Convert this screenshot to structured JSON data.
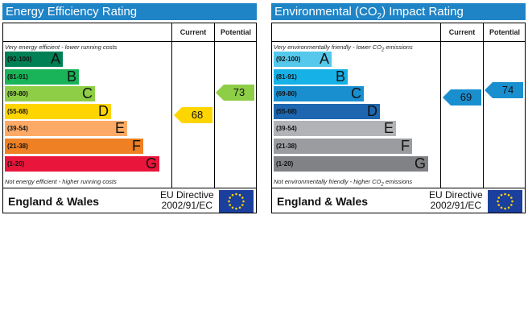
{
  "chart_data": [
    {
      "type": "bar",
      "title": "Energy Efficiency Rating",
      "columns": [
        "Current",
        "Potential"
      ],
      "note_top": "Very energy efficient - lower running costs",
      "note_bottom": "Not energy efficient - higher running costs",
      "bands": [
        {
          "range": "(92-100)",
          "letter": "A",
          "color": "#008054"
        },
        {
          "range": "(81-91)",
          "letter": "B",
          "color": "#19b459"
        },
        {
          "range": "(69-80)",
          "letter": "C",
          "color": "#8dce46"
        },
        {
          "range": "(55-68)",
          "letter": "D",
          "color": "#ffd500"
        },
        {
          "range": "(39-54)",
          "letter": "E",
          "color": "#fcaa65"
        },
        {
          "range": "(21-38)",
          "letter": "F",
          "color": "#ef8023"
        },
        {
          "range": "(1-20)",
          "letter": "G",
          "color": "#e9153b"
        }
      ],
      "current": {
        "value": 68,
        "label": "68",
        "band": "D",
        "color": "#ffd500"
      },
      "potential": {
        "value": 73,
        "label": "73",
        "band": "C",
        "color": "#8dce46"
      },
      "footer": {
        "country": "England & Wales",
        "directive_line1": "EU Directive",
        "directive_line2": "2002/91/EC"
      }
    },
    {
      "type": "bar",
      "title_pre": "Environmental (CO",
      "title_sub": "2",
      "title_post": ") Impact Rating",
      "columns": [
        "Current",
        "Potential"
      ],
      "note_top_pre": "Very environmentally friendly - lower CO",
      "note_top_sub": "2",
      "note_top_post": " emissions",
      "note_bottom_pre": "Not environmentally friendly - higher CO",
      "note_bottom_sub": "2",
      "note_bottom_post": " emissions",
      "bands": [
        {
          "range": "(92-100)",
          "letter": "A",
          "color": "#55c8ec"
        },
        {
          "range": "(81-91)",
          "letter": "B",
          "color": "#16b1e6"
        },
        {
          "range": "(69-80)",
          "letter": "C",
          "color": "#1a8fd0"
        },
        {
          "range": "(55-68)",
          "letter": "D",
          "color": "#1e67b0"
        },
        {
          "range": "(39-54)",
          "letter": "E",
          "color": "#b1b3b6"
        },
        {
          "range": "(21-38)",
          "letter": "F",
          "color": "#9b9c9f"
        },
        {
          "range": "(1-20)",
          "letter": "G",
          "color": "#808285"
        }
      ],
      "current": {
        "value": 69,
        "label": "69",
        "band": "C",
        "color": "#1a8fd0"
      },
      "potential": {
        "value": 74,
        "label": "74",
        "band": "C",
        "color": "#1a8fd0"
      },
      "footer": {
        "country": "England & Wales",
        "directive_line1": "EU Directive",
        "directive_line2": "2002/91/EC"
      }
    }
  ]
}
